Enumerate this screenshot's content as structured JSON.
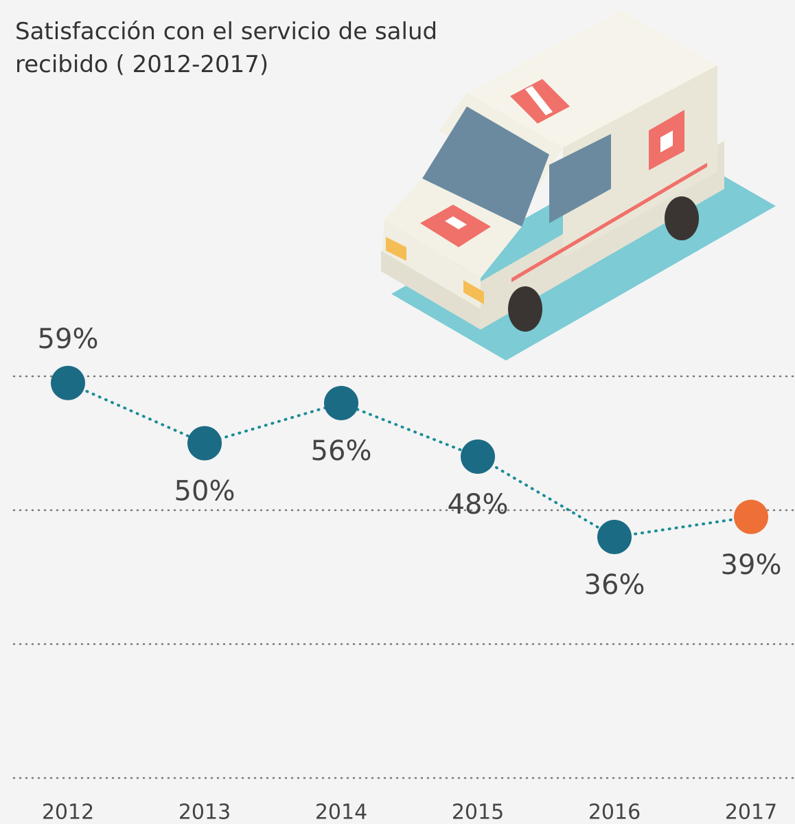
{
  "chart_data": {
    "type": "line",
    "title": "Satisfacción con el servicio de salud recibido ( 2012-2017)",
    "categories": [
      "2012",
      "2013",
      "2014",
      "2015",
      "2016",
      "2017"
    ],
    "values": [
      59,
      50,
      56,
      48,
      36,
      39
    ],
    "value_labels": [
      "59%",
      "50%",
      "56%",
      "48%",
      "36%",
      "39%"
    ],
    "colors": [
      "#1b6b85",
      "#1b6b85",
      "#1b6b85",
      "#1b6b85",
      "#1b6b85",
      "#ee7036"
    ],
    "line_color": "#1a8c95",
    "ylim": [
      0,
      60
    ],
    "yticks": [
      0,
      20,
      40,
      60
    ],
    "grid": true
  }
}
